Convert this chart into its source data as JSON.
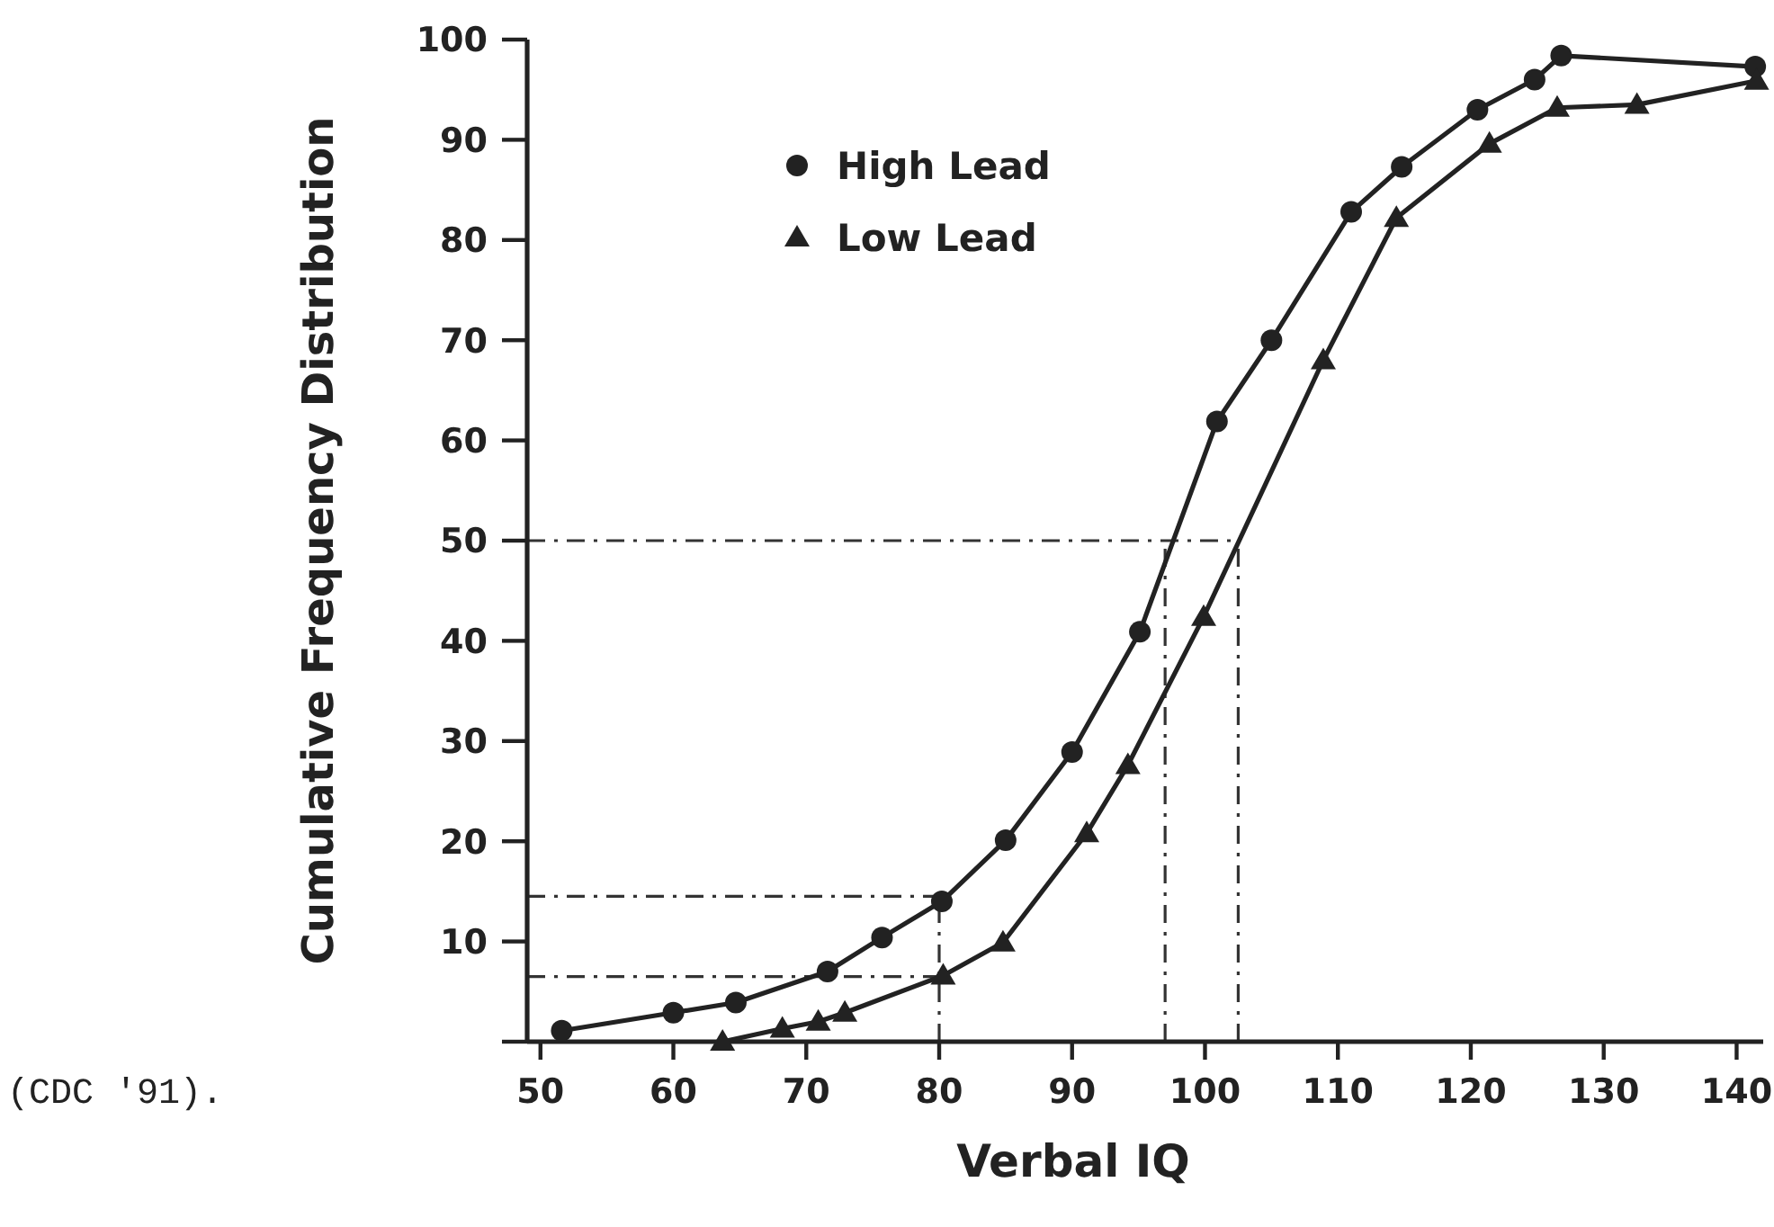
{
  "chart_data": {
    "type": "line",
    "xlabel": "Verbal IQ",
    "ylabel": "Cumulative Frequency Distribution",
    "xlim": [
      49,
      142
    ],
    "ylim": [
      0,
      100
    ],
    "xticks": [
      50,
      60,
      70,
      80,
      90,
      100,
      110,
      120,
      130,
      140
    ],
    "yticks": [
      {
        "value": 0,
        "label": null
      },
      10,
      20,
      30,
      40,
      50,
      60,
      70,
      80,
      90,
      100
    ],
    "grid": false,
    "legend": "top left",
    "line_style": "solid",
    "series": [
      {
        "name": "High Lead",
        "color": "#222222",
        "marker": "circle",
        "x": [
          51.6,
          60,
          64.7,
          71.6,
          75.7,
          80.2,
          85,
          90,
          95.1,
          100.9,
          105,
          111,
          114.8,
          120.5,
          124.8,
          126.8,
          141.4
        ],
        "values": [
          1.1,
          2.9,
          3.9,
          7,
          10.4,
          14,
          20.1,
          28.9,
          40.9,
          61.9,
          70,
          82.8,
          87.3,
          93,
          96,
          98.4,
          97.3
        ]
      },
      {
        "name": "Low Lead",
        "color": "#222222",
        "marker": "triangle",
        "x": [
          63.7,
          68.2,
          70.9,
          72.9,
          80.3,
          84.8,
          91.1,
          94.2,
          99.9,
          108.9,
          114.4,
          121.4,
          126.5,
          132.5,
          141.5
        ],
        "values": [
          0,
          1.3,
          2,
          2.9,
          6.6,
          9.9,
          20.8,
          27.6,
          42.4,
          68,
          82.2,
          89.6,
          93.2,
          93.5,
          95.9
        ]
      }
    ],
    "ref_lines": [
      {
        "axis": "y",
        "value": 50,
        "line_style": "dashdot"
      },
      {
        "axis": "y",
        "value": 14.5,
        "line_style": "dashdot"
      },
      {
        "axis": "y",
        "value": 6.5,
        "line_style": "dashdot"
      },
      {
        "axis": "x",
        "value": 80,
        "line_style": "dashdot"
      },
      {
        "axis": "x",
        "value": 97,
        "line_style": "dashdot"
      },
      {
        "axis": "x",
        "value": 102.5,
        "line_style": "dashdot"
      }
    ],
    "annotations": [
      "(CDC '91)."
    ]
  }
}
